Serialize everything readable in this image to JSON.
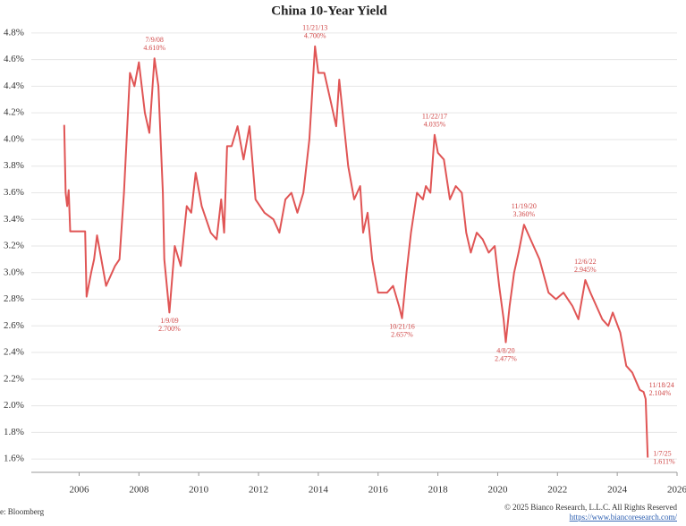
{
  "chart_data": {
    "type": "line",
    "title": "China 10-Year Yield",
    "x": [
      2005.5,
      2005.55,
      2005.6,
      2005.65,
      2005.7,
      2006.2,
      2006.25,
      2006.4,
      2006.5,
      2006.6,
      2006.9,
      2007.2,
      2007.35,
      2007.5,
      2007.7,
      2007.85,
      2008.0,
      2008.2,
      2008.35,
      2008.52,
      2008.65,
      2008.8,
      2008.85,
      2009.02,
      2009.2,
      2009.4,
      2009.6,
      2009.75,
      2009.9,
      2010.1,
      2010.4,
      2010.6,
      2010.75,
      2010.85,
      2010.95,
      2011.1,
      2011.3,
      2011.5,
      2011.7,
      2011.9,
      2012.2,
      2012.5,
      2012.7,
      2012.9,
      2013.1,
      2013.3,
      2013.5,
      2013.7,
      2013.89,
      2014.0,
      2014.2,
      2014.4,
      2014.6,
      2014.7,
      2015.0,
      2015.2,
      2015.4,
      2015.5,
      2015.65,
      2015.8,
      2016.0,
      2016.3,
      2016.5,
      2016.7,
      2016.8,
      2016.95,
      2017.1,
      2017.3,
      2017.5,
      2017.6,
      2017.75,
      2017.89,
      2018.0,
      2018.2,
      2018.4,
      2018.6,
      2018.8,
      2018.95,
      2019.1,
      2019.3,
      2019.5,
      2019.7,
      2019.9,
      2020.05,
      2020.2,
      2020.27,
      2020.4,
      2020.55,
      2020.7,
      2020.88,
      2021.1,
      2021.4,
      2021.7,
      2021.95,
      2022.2,
      2022.5,
      2022.7,
      2022.93,
      2023.1,
      2023.5,
      2023.7,
      2023.85,
      2024.1,
      2024.3,
      2024.5,
      2024.75,
      2024.88,
      2024.95,
      2025.02
    ],
    "series": [
      {
        "name": "China 10-Year Yield",
        "color": "#e05555",
        "values": [
          4.11,
          3.6,
          3.5,
          3.62,
          3.31,
          3.31,
          2.82,
          3.0,
          3.1,
          3.28,
          2.9,
          3.05,
          3.1,
          3.6,
          4.5,
          4.4,
          4.58,
          4.2,
          4.05,
          4.61,
          4.4,
          3.6,
          3.1,
          2.7,
          3.2,
          3.05,
          3.5,
          3.45,
          3.75,
          3.5,
          3.3,
          3.25,
          3.55,
          3.3,
          3.95,
          3.95,
          4.1,
          3.85,
          4.1,
          3.55,
          3.45,
          3.4,
          3.3,
          3.55,
          3.6,
          3.45,
          3.6,
          4.0,
          4.7,
          4.5,
          4.5,
          4.3,
          4.1,
          4.45,
          3.8,
          3.55,
          3.65,
          3.3,
          3.45,
          3.1,
          2.85,
          2.85,
          2.9,
          2.75,
          2.657,
          3.0,
          3.3,
          3.6,
          3.55,
          3.65,
          3.6,
          4.035,
          3.9,
          3.85,
          3.55,
          3.65,
          3.6,
          3.3,
          3.15,
          3.3,
          3.25,
          3.15,
          3.2,
          2.9,
          2.65,
          2.477,
          2.75,
          3.0,
          3.15,
          3.36,
          3.25,
          3.1,
          2.85,
          2.8,
          2.85,
          2.75,
          2.65,
          2.945,
          2.85,
          2.65,
          2.6,
          2.7,
          2.55,
          2.3,
          2.25,
          2.12,
          2.104,
          2.05,
          1.611
        ]
      }
    ],
    "xlim": [
      2004.4,
      2026
    ],
    "xticks": [
      2006,
      2008,
      2010,
      2012,
      2014,
      2016,
      2018,
      2020,
      2022,
      2024,
      2026
    ],
    "ylim": [
      1.5,
      4.9
    ],
    "yticks": [
      {
        "value": 1.6,
        "label": "1.6%"
      },
      {
        "value": 1.8,
        "label": "1.8%"
      },
      {
        "value": 2.0,
        "label": "2.0%"
      },
      {
        "value": 2.2,
        "label": "2.2%"
      },
      {
        "value": 2.4,
        "label": "2.4%"
      },
      {
        "value": 2.6,
        "label": "2.6%"
      },
      {
        "value": 2.8,
        "label": "2.8%"
      },
      {
        "value": 3.0,
        "label": "3.0%"
      },
      {
        "value": 3.2,
        "label": "3.2%"
      },
      {
        "value": 3.4,
        "label": "3.4%"
      },
      {
        "value": 3.6,
        "label": "3.6%"
      },
      {
        "value": 3.8,
        "label": "3.8%"
      },
      {
        "value": 4.0,
        "label": "4.0%"
      },
      {
        "value": 4.2,
        "label": "4.2%"
      },
      {
        "value": 4.4,
        "label": "4.4%"
      },
      {
        "value": 4.6,
        "label": "4.6%"
      },
      {
        "value": 4.8,
        "label": "4.8%"
      }
    ],
    "grid": true,
    "annotations": [
      {
        "date": "7/9/08",
        "label": "4.610%",
        "x": 2008.52,
        "y": 4.61,
        "side": "above"
      },
      {
        "date": "1/9/09",
        "label": "2.700%",
        "x": 2009.02,
        "y": 2.7,
        "side": "below"
      },
      {
        "date": "11/21/13",
        "label": "4.700%",
        "x": 2013.89,
        "y": 4.7,
        "side": "above"
      },
      {
        "date": "10/21/16",
        "label": "2.657%",
        "x": 2016.8,
        "y": 2.657,
        "side": "below"
      },
      {
        "date": "11/22/17",
        "label": "4.035%",
        "x": 2017.89,
        "y": 4.035,
        "side": "above"
      },
      {
        "date": "4/8/20",
        "label": "2.477%",
        "x": 2020.27,
        "y": 2.477,
        "side": "below"
      },
      {
        "date": "11/19/20",
        "label": "3.360%",
        "x": 2020.88,
        "y": 3.36,
        "side": "above"
      },
      {
        "date": "12/6/22",
        "label": "2.945%",
        "x": 2022.93,
        "y": 2.945,
        "side": "above"
      },
      {
        "date": "11/18/24",
        "label": "2.104%",
        "x": 2024.88,
        "y": 2.104,
        "side": "right-up"
      },
      {
        "date": "1/7/25",
        "label": "1.611%",
        "x": 2025.02,
        "y": 1.611,
        "side": "right"
      }
    ],
    "source": "e: Bloomberg",
    "copyright": "© 2025 Bianco Research, L.L.C. All Rights Reserved",
    "url": "https://www.biancoresearch.com/"
  }
}
